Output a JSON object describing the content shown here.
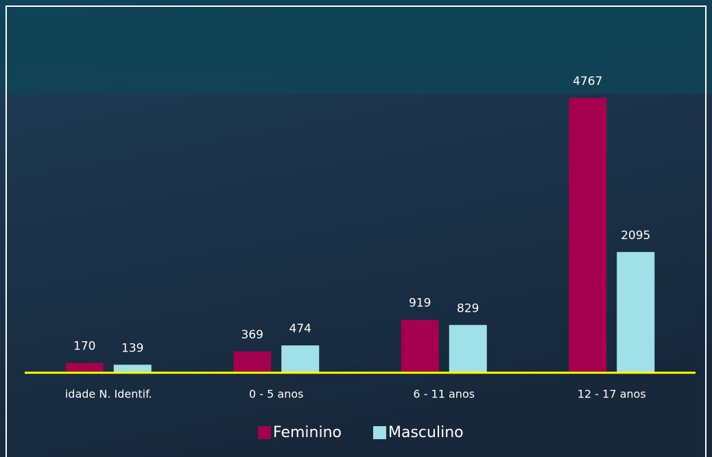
{
  "chart_data": {
    "type": "bar",
    "categories": [
      "idade N. Identif.",
      "0 - 5 anos",
      "6 - 11 anos",
      "12 - 17 anos"
    ],
    "series": [
      {
        "name": "Feminino",
        "color": "#a50050",
        "values": [
          170,
          369,
          919,
          4767
        ]
      },
      {
        "name": "Masculino",
        "color": "#a0e0e8",
        "values": [
          139,
          474,
          829,
          2095
        ]
      }
    ],
    "ylim": [
      0,
      5000
    ],
    "baseline_color": "#ffff00"
  }
}
